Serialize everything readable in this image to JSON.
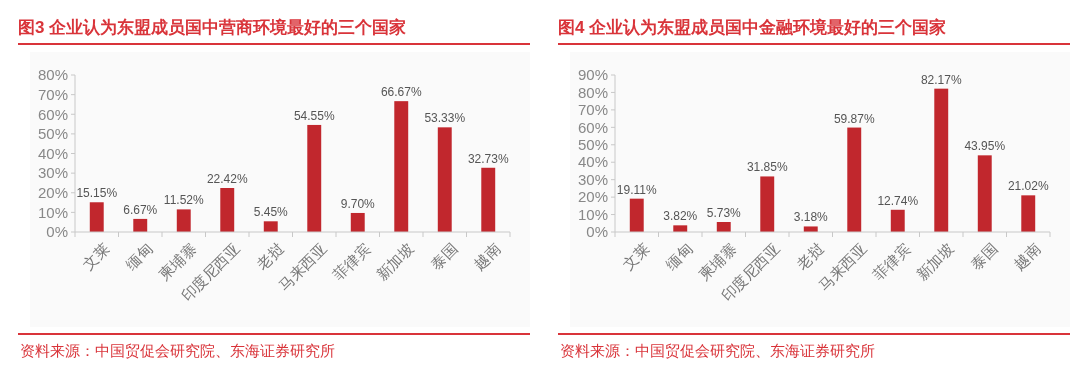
{
  "chart_data": [
    {
      "type": "bar",
      "title": "图3  企业认为东盟成员国中营商环境最好的三个国家",
      "categories": [
        "文莱",
        "缅甸",
        "柬埔寨",
        "印度尼西亚",
        "老挝",
        "马来西亚",
        "菲律宾",
        "新加坡",
        "泰国",
        "越南"
      ],
      "values": [
        15.15,
        6.67,
        11.52,
        22.42,
        5.45,
        54.55,
        9.7,
        66.67,
        53.33,
        32.73
      ],
      "value_labels": [
        "15.15%",
        "6.67%",
        "11.52%",
        "22.42%",
        "5.45%",
        "54.55%",
        "9.70%",
        "66.67%",
        "53.33%",
        "32.73%"
      ],
      "color": "#c1272d",
      "ylim": [
        0,
        80
      ],
      "yticks": [
        {
          "value": 0,
          "label": "0%"
        },
        {
          "value": 10,
          "label": "10%"
        },
        {
          "value": 20,
          "label": "20%"
        },
        {
          "value": 30,
          "label": "30%"
        },
        {
          "value": 40,
          "label": "40%"
        },
        {
          "value": 50,
          "label": "50%"
        },
        {
          "value": 60,
          "label": "60%"
        },
        {
          "value": 70,
          "label": "70%"
        },
        {
          "value": 80,
          "label": "80%"
        }
      ],
      "annotations": [
        "资料来源：中国贸促会研究院、东海证券研究所"
      ]
    },
    {
      "type": "bar",
      "title": "图4  企业认为东盟成员国中金融环境最好的三个国家",
      "categories": [
        "文莱",
        "缅甸",
        "柬埔寨",
        "印度尼西亚",
        "老挝",
        "马来西亚",
        "菲律宾",
        "新加坡",
        "泰国",
        "越南"
      ],
      "values": [
        19.11,
        3.82,
        5.73,
        31.85,
        3.18,
        59.87,
        12.74,
        82.17,
        43.95,
        21.02
      ],
      "value_labels": [
        "19.11%",
        "3.82%",
        "5.73%",
        "31.85%",
        "3.18%",
        "59.87%",
        "12.74%",
        "82.17%",
        "43.95%",
        "21.02%"
      ],
      "color": "#c1272d",
      "ylim": [
        0,
        90
      ],
      "yticks": [
        {
          "value": 0,
          "label": "0%"
        },
        {
          "value": 10,
          "label": "10%"
        },
        {
          "value": 20,
          "label": "20%"
        },
        {
          "value": 30,
          "label": "30%"
        },
        {
          "value": 40,
          "label": "40%"
        },
        {
          "value": 50,
          "label": "50%"
        },
        {
          "value": 60,
          "label": "60%"
        },
        {
          "value": 70,
          "label": "70%"
        },
        {
          "value": 80,
          "label": "80%"
        },
        {
          "value": 90,
          "label": "90%"
        }
      ],
      "annotations": [
        "资料来源：中国贸促会研究院、东海证券研究所"
      ]
    }
  ]
}
